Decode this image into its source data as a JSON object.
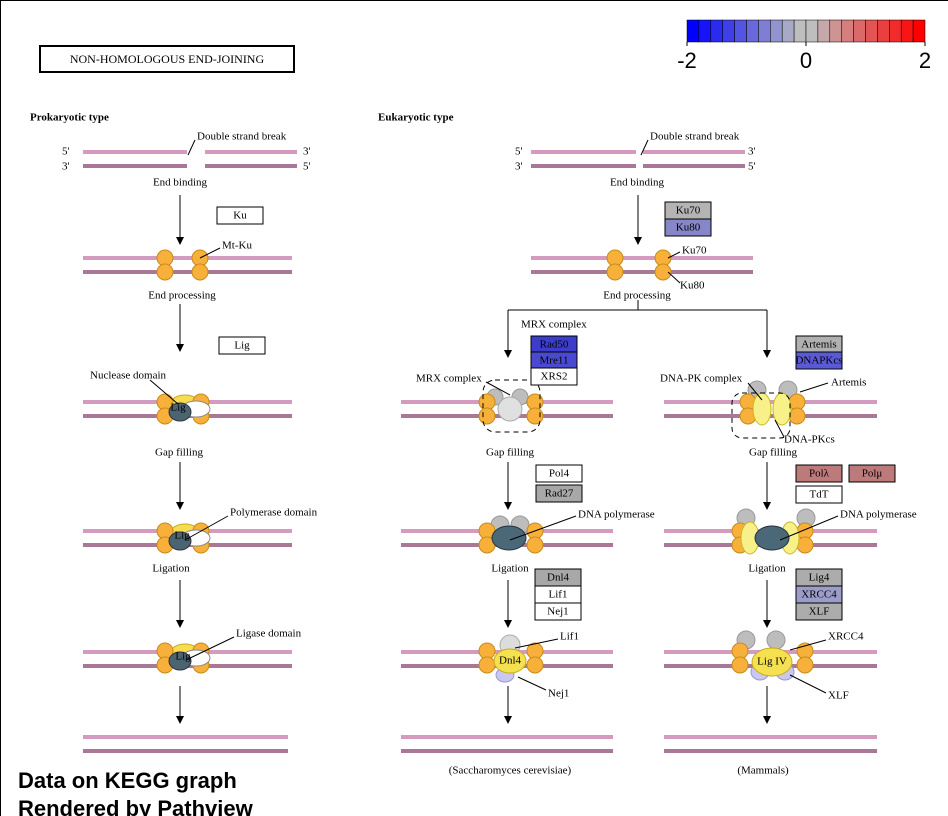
{
  "title": "NON-HOMOLOGOUS END-JOINING",
  "legend": {
    "ticks": [
      -2,
      0,
      2
    ],
    "colors": [
      "#0000ff",
      "#1515f8",
      "#2a2af1",
      "#3f3fea",
      "#5454e3",
      "#6969dc",
      "#7e7ed5",
      "#9393ce",
      "#a8a8c7",
      "#bebebe",
      "#bebebe",
      "#c7a8a8",
      "#ce9393",
      "#d57e7e",
      "#dc6969",
      "#e35454",
      "#ea3f3f",
      "#f12a2a",
      "#f81515",
      "#ff0000"
    ]
  },
  "genes": [
    {
      "label": "Ku",
      "color": "#ffffff"
    },
    {
      "label": "Lig",
      "color": "#ffffff"
    },
    {
      "label": "Ku70",
      "color": "#b4b4b4"
    },
    {
      "label": "Ku80",
      "color": "#8686c8"
    },
    {
      "label": "Rad50",
      "color": "#3d3dcc"
    },
    {
      "label": "Mre11",
      "color": "#4a4ad0"
    },
    {
      "label": "XRS2",
      "color": "#ffffff"
    },
    {
      "label": "Artemis",
      "color": "#b0b0b0"
    },
    {
      "label": "DNAPKcs",
      "color": "#5a5ad6"
    },
    {
      "label": "Pol4",
      "color": "#ffffff"
    },
    {
      "label": "Rad27",
      "color": "#a8a8a8"
    },
    {
      "label": "Polλ",
      "color": "#bc7a7a"
    },
    {
      "label": "Polμ",
      "color": "#bc7a7a"
    },
    {
      "label": "TdT",
      "color": "#ffffff"
    },
    {
      "label": "Dnl4",
      "color": "#a8a8a8"
    },
    {
      "label": "Lif1",
      "color": "#ffffff"
    },
    {
      "label": "Nej1",
      "color": "#ffffff"
    },
    {
      "label": "Lig4",
      "color": "#acacac"
    },
    {
      "label": "XRCC4",
      "color": "#9c9cc8"
    },
    {
      "label": "XLF",
      "color": "#acacac"
    }
  ],
  "labels": [
    "Prokaryotic type",
    "Double strand break",
    "5'",
    "3'",
    "3'",
    "5'",
    "End binding",
    "Mt-Ku",
    "End processing",
    "Nuclease domain",
    "Lig",
    "Gap filling",
    "Polymerase domain",
    "Lig",
    "Ligation",
    "Ligase domain",
    "Lig",
    "Eukaryotic type",
    "Double strand break",
    "5'",
    "3'",
    "3'",
    "5'",
    "End binding",
    "Ku70",
    "Ku80",
    "End processing",
    "MRX complex",
    "MRX complex",
    "DNA-PK complex",
    "Artemis",
    "DNA-PKcs",
    "Gap filling",
    "Gap filling",
    "DNA polymerase",
    "DNA polymerase",
    "Ligation",
    "Ligation",
    "Lif1",
    "Dnl4",
    "Nej1",
    "XRCC4",
    "Lig IV",
    "XLF",
    "(Saccharomyces cerevisiae)",
    "(Mammals)"
  ],
  "footer": [
    "Data on KEGG graph",
    "Rendered by Pathview"
  ]
}
